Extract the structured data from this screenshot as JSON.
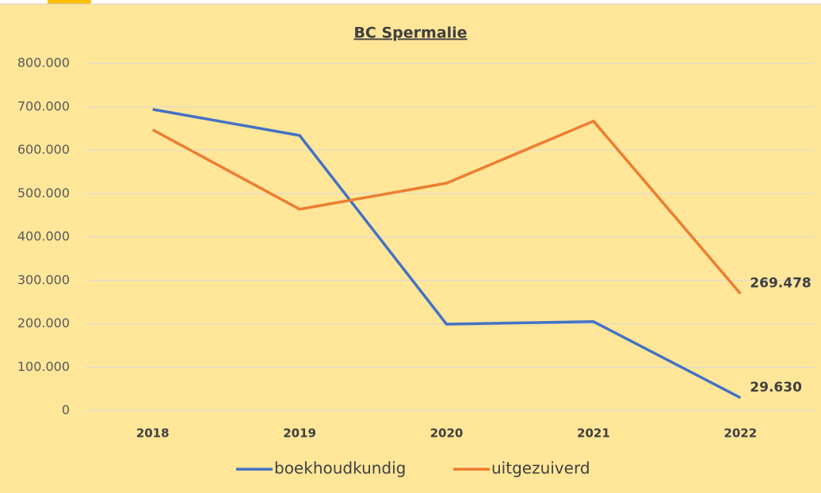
{
  "chart_data": {
    "type": "line",
    "title": "BC Spermalie",
    "categories": [
      "2018",
      "2019",
      "2020",
      "2021",
      "2022"
    ],
    "series": [
      {
        "name": "boekhoudkundig",
        "color": "#4472c4",
        "values": [
          694000,
          634000,
          199000,
          205000,
          29630
        ],
        "value_labels": [
          null,
          null,
          null,
          null,
          "29.630"
        ]
      },
      {
        "name": "uitgezuiverd",
        "color": "#ed7d31",
        "values": [
          647000,
          464000,
          524000,
          667000,
          269478
        ],
        "value_labels": [
          null,
          null,
          null,
          null,
          "269.478"
        ]
      }
    ],
    "ylim": [
      0,
      800000
    ],
    "yticks": [
      0,
      {
        "value": 100000,
        "label": "100.000"
      },
      {
        "value": 200000,
        "label": "200.000"
      },
      {
        "value": 300000,
        "label": "300.000"
      },
      {
        "value": 400000,
        "label": "400.000"
      },
      {
        "value": 500000,
        "label": "500.000"
      },
      {
        "value": 600000,
        "label": "600.000"
      },
      {
        "value": 700000,
        "label": "700.000"
      },
      {
        "value": 800000,
        "label": "800.000"
      }
    ],
    "grid": true,
    "legend": "bottom"
  }
}
